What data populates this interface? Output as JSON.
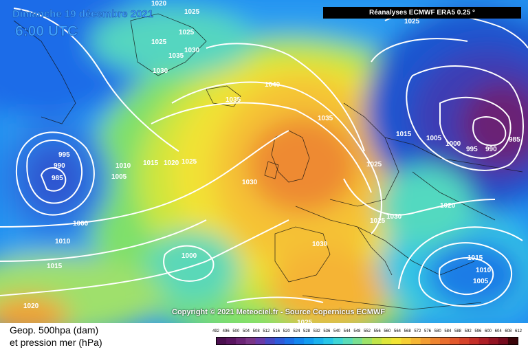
{
  "header": {
    "date": "Dimanche 19 décembre 2021",
    "time": "6:00 UTC",
    "source_box": "Réanalyses ECMWF ERA5 0.25 °"
  },
  "copyright": "Copyright © 2021 Meteociel.fr - Source Copernicus ECMWF",
  "legend": {
    "line1": "Geop. 500hpa (dam)",
    "line2": "et pression mer (hPa)"
  },
  "scale": {
    "ticks": [
      "492",
      "496",
      "500",
      "504",
      "508",
      "512",
      "516",
      "520",
      "524",
      "528",
      "532",
      "536",
      "540",
      "544",
      "548",
      "552",
      "556",
      "560",
      "564",
      "568",
      "572",
      "576",
      "580",
      "584",
      "588",
      "592",
      "596",
      "600",
      "604",
      "608",
      "612"
    ],
    "colors": [
      "#4b0f4f",
      "#5a1560",
      "#6b2475",
      "#7a3586",
      "#6a3aa6",
      "#4848c2",
      "#2f5ad8",
      "#1d6fe6",
      "#1486ee",
      "#139cf0",
      "#1bb2ee",
      "#27c6e8",
      "#3fd6d6",
      "#5bdcb8",
      "#7adf92",
      "#9de26a",
      "#c0e44a",
      "#dee63a",
      "#f2e434",
      "#f6cf34",
      "#f5b634",
      "#f29d33",
      "#ee8530",
      "#e96e2e",
      "#e2582c",
      "#d6432a",
      "#c42f28",
      "#ad1f26",
      "#931423",
      "#750b1e",
      "#3a0409"
    ]
  },
  "isobars": [
    "1020",
    "1025",
    "1025",
    "1035",
    "1030",
    "1025",
    "1030",
    "1040",
    "1035",
    "1035",
    "1030",
    "1025",
    "1025",
    "1030",
    "1025",
    "1015",
    "1020",
    "1010",
    "1005",
    "1015",
    "1000",
    "995",
    "985",
    "990",
    "1025",
    "1020",
    "995",
    "990",
    "985",
    "1000",
    "1005",
    "1010",
    "1015",
    "1000",
    "1005",
    "1010",
    "1015",
    "1020",
    "1030",
    "1025"
  ]
}
